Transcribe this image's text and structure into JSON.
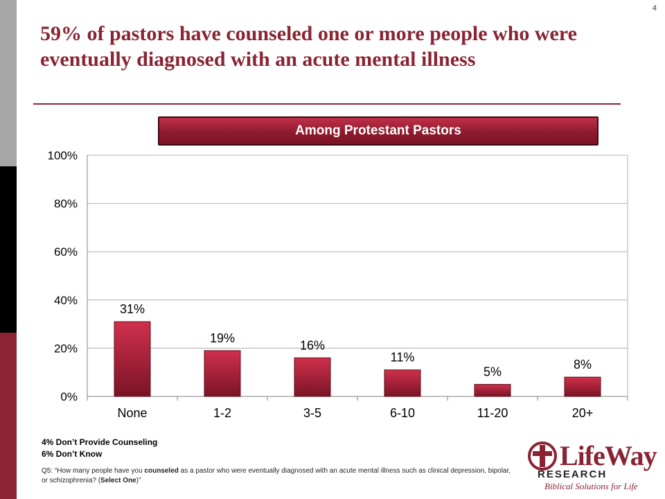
{
  "page_number": "4",
  "title": "59% of pastors have counseled one or more people who were eventually diagnosed with an acute mental illness",
  "banner": "Among Protestant Pastors",
  "notes": [
    "4% Don’t Provide Counseling",
    "6% Don’t Know"
  ],
  "footnote": {
    "part1": "Q5: “How many people have you ",
    "bold1": "counseled",
    "part2": " as a pastor who were eventually diagnosed with an acute mental illness such as clinical depression, bipolar, or schizophrenia? (",
    "bold2": "Select One",
    "part3": ")”"
  },
  "logo": {
    "word": "LifeWay",
    "research": "RESEARCH",
    "tagline": "Biblical Solutions for Life"
  },
  "colors": {
    "brand": "#8a2432",
    "bar_top": "#d0304c",
    "bar_bottom": "#7a1425"
  },
  "chart_data": {
    "type": "bar",
    "categories": [
      "None",
      "1-2",
      "3-5",
      "6-10",
      "11-20",
      "20+"
    ],
    "values": [
      31,
      19,
      16,
      11,
      5,
      8
    ],
    "data_labels": [
      "31%",
      "19%",
      "16%",
      "11%",
      "5%",
      "8%"
    ],
    "y_ticks": [
      "0%",
      "20%",
      "40%",
      "60%",
      "80%",
      "100%"
    ],
    "ylim": [
      0,
      100
    ],
    "grid": true,
    "title": "Among Protestant Pastors",
    "xlabel": "",
    "ylabel": ""
  }
}
